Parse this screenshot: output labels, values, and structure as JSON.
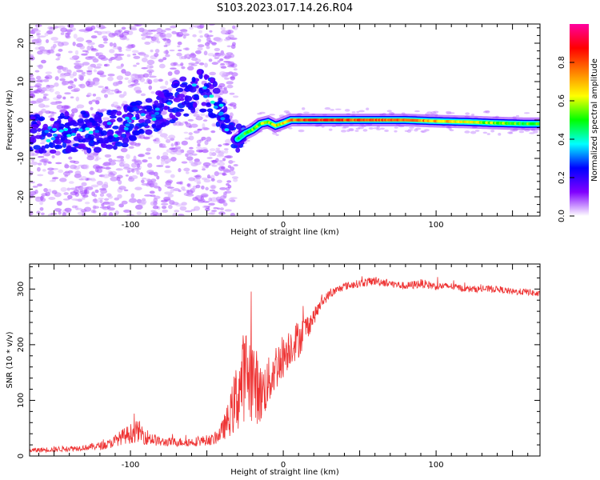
{
  "title": "S103.2023.017.14.26.R04",
  "chart_data": [
    {
      "type": "heatmap",
      "xlabel": "Height of straight line (km)",
      "ylabel": "Frequency (Hz)",
      "xlim": [
        -166,
        168
      ],
      "ylim": [
        -25,
        25
      ],
      "xticks": [
        -100,
        0,
        100
      ],
      "yticks": [
        -20,
        -10,
        0,
        10,
        20
      ],
      "grid": false,
      "colorbar": {
        "label": "Normalized spectral amplitude",
        "range": [
          0.0,
          1.0
        ],
        "ticks": [
          0.0,
          0.2,
          0.4,
          0.6,
          0.8
        ],
        "colors": [
          "#ffffff",
          "#8000ff",
          "#0000ff",
          "#00ffff",
          "#00ff00",
          "#ffff00",
          "#ff8000",
          "#ff0000",
          "#ff00a0"
        ]
      },
      "ridge": {
        "x": [
          -166,
          -150,
          -135,
          -120,
          -105,
          -95,
          -85,
          -75,
          -65,
          -55,
          -45,
          -35,
          -30,
          -25,
          -20,
          -15,
          -10,
          -5,
          0,
          5,
          10,
          20,
          40,
          60,
          80,
          100,
          120,
          140,
          160,
          168
        ],
        "y": [
          -3.5,
          -3.5,
          -3,
          -3,
          -2,
          0,
          2,
          4,
          6,
          8,
          5,
          -2,
          -5,
          -3.5,
          -2.5,
          -1,
          -0.5,
          -1.5,
          -0.8,
          0,
          0,
          0,
          0,
          0,
          0,
          -0.3,
          -0.5,
          -0.8,
          -1.0,
          -1.0
        ],
        "amplitude": [
          0.3,
          0.35,
          0.4,
          0.35,
          0.35,
          0.3,
          0.3,
          0.25,
          0.25,
          0.25,
          0.25,
          0.3,
          0.45,
          0.5,
          0.55,
          0.55,
          0.6,
          0.6,
          0.65,
          0.75,
          0.8,
          0.85,
          0.8,
          0.8,
          0.75,
          0.7,
          0.6,
          0.55,
          0.5,
          0.5
        ]
      }
    },
    {
      "type": "line",
      "xlabel": "Height of straight line (km)",
      "ylabel": "SNR (10 * v/v)",
      "xlim": [
        -166,
        168
      ],
      "ylim": [
        0,
        345
      ],
      "xticks": [
        -100,
        0,
        100
      ],
      "yticks": [
        0,
        100,
        200,
        300
      ],
      "grid": false,
      "series": [
        {
          "color": "#ee3333",
          "x": [
            -166,
            -150,
            -130,
            -115,
            -105,
            -100,
            -95,
            -90,
            -80,
            -60,
            -45,
            -40,
            -35,
            -30,
            -25,
            -20,
            -15,
            -10,
            -5,
            0,
            5,
            10,
            15,
            20,
            25,
            30,
            40,
            50,
            60,
            70,
            80,
            90,
            100,
            110,
            120,
            130,
            140,
            150,
            160,
            168
          ],
          "y": [
            10,
            12,
            15,
            20,
            35,
            40,
            45,
            35,
            25,
            25,
            30,
            45,
            70,
            110,
            150,
            140,
            110,
            130,
            160,
            180,
            200,
            210,
            230,
            250,
            275,
            290,
            305,
            310,
            315,
            310,
            305,
            310,
            305,
            305,
            300,
            300,
            300,
            295,
            295,
            290
          ],
          "noise": [
            4,
            5,
            5,
            8,
            14,
            18,
            20,
            15,
            8,
            8,
            10,
            18,
            35,
            70,
            85,
            80,
            55,
            45,
            45,
            40,
            35,
            35,
            25,
            15,
            10,
            8,
            7,
            7,
            8,
            7,
            7,
            8,
            7,
            6,
            6,
            6,
            6,
            6,
            6,
            6
          ]
        }
      ]
    }
  ]
}
